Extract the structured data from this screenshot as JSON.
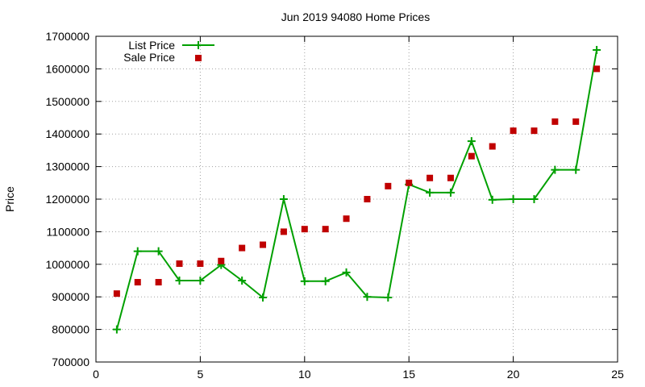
{
  "chart_data": {
    "type": "line",
    "title": "Jun 2019 94080 Home Prices",
    "xlabel": "",
    "ylabel": "Price",
    "xlim": [
      0,
      25
    ],
    "ylim": [
      700000,
      1700000
    ],
    "x_ticks": [
      0,
      5,
      10,
      15,
      20,
      25
    ],
    "y_ticks": [
      700000,
      800000,
      900000,
      1000000,
      1100000,
      1200000,
      1300000,
      1400000,
      1500000,
      1600000,
      1700000
    ],
    "grid": true,
    "legend_position": "top-left",
    "colors": {
      "list": "#00a000",
      "sale": "#c00000",
      "grid": "#a0a0a0"
    },
    "series": [
      {
        "name": "List Price",
        "style": "line-plus",
        "x": [
          1,
          2,
          3,
          4,
          5,
          6,
          7,
          8,
          9,
          10,
          11,
          12,
          13,
          14,
          15,
          16,
          17,
          18,
          19,
          20,
          21,
          22,
          23,
          24
        ],
        "values": [
          800000,
          1040000,
          1040000,
          950000,
          950000,
          998000,
          950000,
          898000,
          1200000,
          948000,
          948000,
          975000,
          900000,
          898000,
          1245000,
          1220000,
          1220000,
          1378000,
          1198000,
          1200000,
          1200000,
          1290000,
          1290000,
          1658000
        ]
      },
      {
        "name": "Sale Price",
        "style": "square-points",
        "x": [
          1,
          2,
          3,
          4,
          5,
          6,
          7,
          8,
          9,
          10,
          11,
          12,
          13,
          14,
          15,
          16,
          17,
          18,
          19,
          20,
          21,
          22,
          23,
          24
        ],
        "values": [
          910000,
          945000,
          945000,
          1002000,
          1002000,
          1010000,
          1050000,
          1060000,
          1100000,
          1108000,
          1108000,
          1140000,
          1200000,
          1240000,
          1250000,
          1265000,
          1265000,
          1332000,
          1362000,
          1410000,
          1410000,
          1438000,
          1438000,
          1600000
        ]
      }
    ]
  }
}
